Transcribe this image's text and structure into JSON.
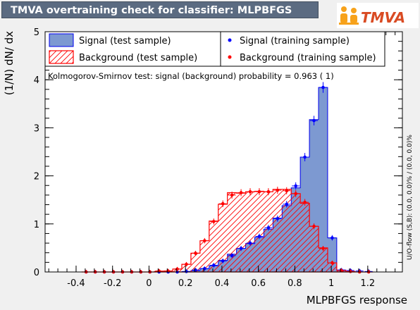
{
  "header": {
    "title": "TMVA overtraining check for classifier: MLPBFGS",
    "logo_text": "TMVA"
  },
  "colors": {
    "title_bar": "#5b6b81",
    "signal_fill": "#7d99d1",
    "signal_line": "#0000ee",
    "background_hatch": "#ff0000",
    "signal_points": "#0000ff",
    "background_points": "#ff0000",
    "logo_orange": "#f7a21b",
    "logo_text": "#d94b23"
  },
  "side_note": "U/O-flow (S,B): (0.0, 0.0)% / (0.0, 0.0)%",
  "chart_data": {
    "type": "histogram",
    "title": "TMVA overtraining check for classifier: MLPBFGS",
    "xlabel": "MLPBFGS response",
    "ylabel": "(1/N) dN/ dx",
    "xlim": [
      -0.57,
      1.39
    ],
    "ylim": [
      0,
      5
    ],
    "x_ticks": [
      -0.4,
      -0.2,
      0,
      0.2,
      0.4,
      0.6,
      0.8,
      1,
      1.2
    ],
    "y_ticks": [
      0,
      1,
      2,
      3,
      4,
      5
    ],
    "grid": false,
    "bin_edges": [
      -0.37,
      -0.32,
      -0.27,
      -0.22,
      -0.17,
      -0.12,
      -0.07,
      -0.02,
      0.03,
      0.08,
      0.13,
      0.18,
      0.23,
      0.28,
      0.33,
      0.38,
      0.43,
      0.48,
      0.53,
      0.58,
      0.63,
      0.68,
      0.73,
      0.78,
      0.83,
      0.88,
      0.93,
      0.98,
      1.03,
      1.08,
      1.13,
      1.18,
      1.23
    ],
    "ks_text": "Kolmogorov-Smirnov test: signal (background) probability = 0.963 (    1)",
    "legend": [
      {
        "label": "Signal (test sample)",
        "style": "signal-fill"
      },
      {
        "label": "Signal (training sample)",
        "style": "signal-points"
      },
      {
        "label": "Background (test sample)",
        "style": "background-hatch"
      },
      {
        "label": "Background (training sample)",
        "style": "background-points"
      }
    ],
    "series": [
      {
        "name": "Signal (test sample)",
        "values": [
          0,
          0,
          0,
          0,
          0,
          0,
          0,
          0,
          0,
          0,
          0,
          0.01,
          0.03,
          0.07,
          0.13,
          0.24,
          0.37,
          0.49,
          0.59,
          0.72,
          0.89,
          1.12,
          1.38,
          1.75,
          2.39,
          3.17,
          3.84,
          0.71,
          0.04,
          0.01,
          0,
          0
        ]
      },
      {
        "name": "Signal (training sample)",
        "values": [
          0,
          0,
          0,
          0,
          0,
          0,
          0,
          0,
          0,
          0,
          0,
          0.01,
          0.04,
          0.07,
          0.14,
          0.23,
          0.34,
          0.49,
          0.6,
          0.74,
          0.92,
          1.11,
          1.41,
          1.79,
          2.39,
          3.15,
          3.84,
          0.71,
          0.04,
          0.03,
          0.02,
          0.01
        ]
      },
      {
        "name": "Background (test sample)",
        "values": [
          0,
          0,
          0,
          0,
          0,
          0,
          0,
          0,
          0.01,
          0.02,
          0.06,
          0.16,
          0.39,
          0.65,
          1.06,
          1.41,
          1.65,
          1.64,
          1.67,
          1.68,
          1.67,
          1.72,
          1.72,
          1.63,
          1.43,
          0.95,
          0.5,
          0.19,
          0.03,
          0.01,
          0,
          0
        ]
      },
      {
        "name": "Background (training sample)",
        "values": [
          0,
          0,
          0,
          0,
          0,
          0,
          0,
          0,
          0.02,
          0.02,
          0.06,
          0.16,
          0.39,
          0.65,
          1.05,
          1.42,
          1.6,
          1.65,
          1.67,
          1.67,
          1.67,
          1.7,
          1.69,
          1.63,
          1.45,
          0.95,
          0.49,
          0.19,
          0.03,
          0.01,
          0,
          0
        ]
      }
    ]
  }
}
